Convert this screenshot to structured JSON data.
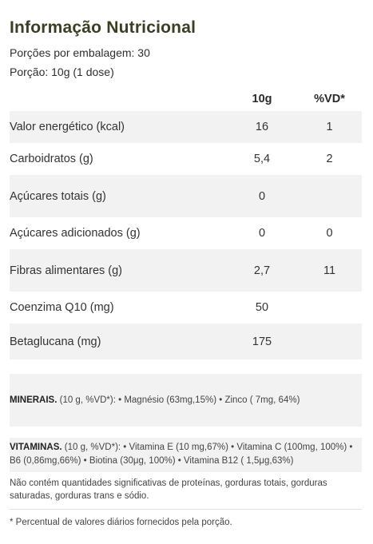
{
  "title": "Informação Nutricional",
  "servings_per_pack": "Porções por embalagem: 30",
  "serving_size": "Porção: 10g (1 dose)",
  "table": {
    "headers": [
      "",
      "10g",
      "%VD*"
    ],
    "rows": [
      {
        "name": "Valor energético (kcal)",
        "amount": "16",
        "dv": "1"
      },
      {
        "name": "Carboidratos (g)",
        "amount": "5,4",
        "dv": "2"
      },
      {
        "name": "Açúcares totais (g)",
        "amount": "0",
        "dv": ""
      },
      {
        "name": "Açúcares adicionados (g)",
        "amount": "0",
        "dv": "0"
      },
      {
        "name": "Fibras alimentares (g)",
        "amount": "2,7",
        "dv": "11"
      },
      {
        "name": "Coenzima Q10 (mg)",
        "amount": "50",
        "dv": ""
      },
      {
        "name": "Betaglucana (mg)",
        "amount": "175",
        "dv": ""
      }
    ]
  },
  "minerals": {
    "label": "MINERAIS.",
    "text": " (10 g, %VD*): • Magnésio (63mg,15%) • Zinco ( 7mg, 64%)"
  },
  "vitamins": {
    "label": "VITAMINAS.",
    "text": " (10 g, %VD*): • Vitamina E (10 mg,67%) • Vitamina C (100mg, 100%) • B6 (0,86mg,66%) • Biotina (30μg, 100%) • Vitamina B12 ( 1,5μg,63%)"
  },
  "footnote_1": "Não contém quantidades significativas de proteínas, gorduras totais, gorduras saturadas, gorduras trans e sódio.",
  "footnote_2": "* Percentual de valores diários fornecidos pela porção."
}
